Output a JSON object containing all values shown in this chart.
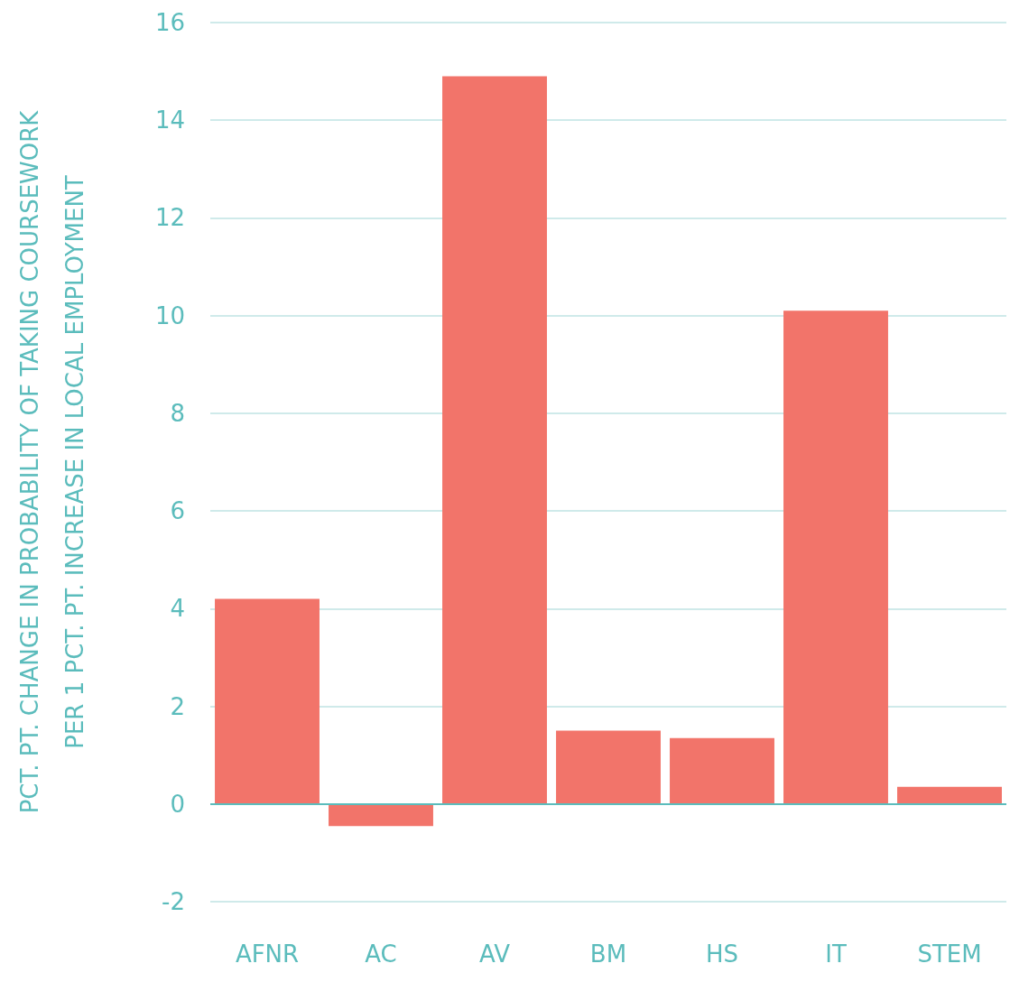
{
  "chart_data": {
    "type": "bar",
    "ylabel": "PCT. PT. CHANGE IN PROBABILITY OF TAKING COURSEWORK\nPER 1 PCT. PT. INCREASE IN LOCAL EMPLOYMENT",
    "categories": [
      "AFNR",
      "AC",
      "AV",
      "BM",
      "HS",
      "IT",
      "STEM"
    ],
    "values": [
      4.2,
      -0.45,
      14.9,
      1.5,
      1.35,
      10.1,
      0.35
    ],
    "color": "#f2746a",
    "ylim": [
      -2,
      16
    ],
    "yticks": [
      -2,
      0,
      2,
      4,
      6,
      8,
      10,
      12,
      14,
      16
    ],
    "grid": "y",
    "ref_lines": [
      {
        "axis": "y",
        "value": 0,
        "color": "#5bbcbc"
      }
    ]
  }
}
